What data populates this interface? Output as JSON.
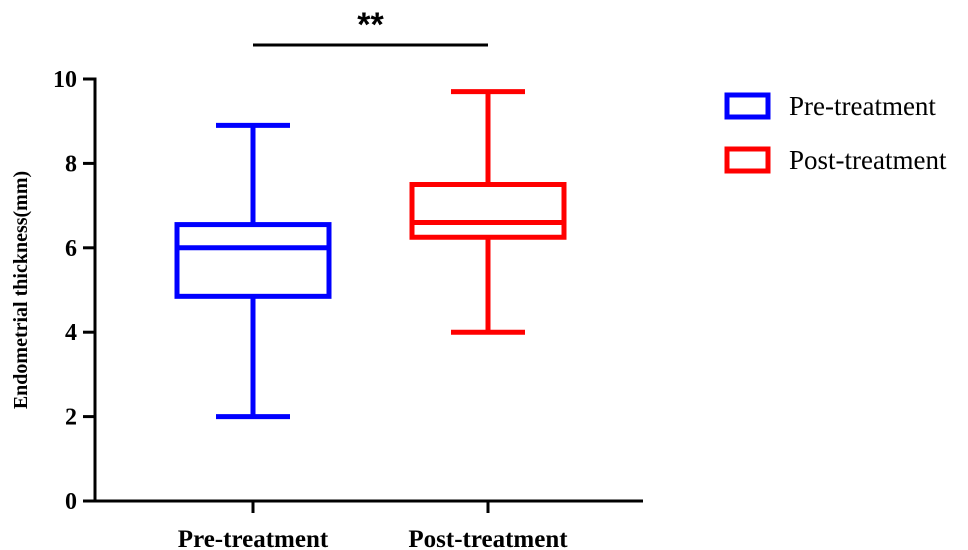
{
  "chart_data": {
    "type": "box",
    "title": "",
    "xlabel": "",
    "ylabel": "Endometrial thickness(mm)",
    "ylim": [
      0,
      10
    ],
    "yticks": [
      0,
      2,
      4,
      6,
      8,
      10
    ],
    "categories": [
      "Pre-treatment",
      "Post-treatment"
    ],
    "series": [
      {
        "name": "Pre-treatment",
        "color": "#0000ff",
        "min": 2.0,
        "q1": 4.85,
        "median": 6.0,
        "q3": 6.55,
        "max": 8.9
      },
      {
        "name": "Post-treatment",
        "color": "#ff0000",
        "min": 4.0,
        "q1": 6.25,
        "median": 6.6,
        "q3": 7.5,
        "max": 9.7
      }
    ],
    "significance": {
      "label": "**",
      "between": [
        "Pre-treatment",
        "Post-treatment"
      ]
    },
    "legend": {
      "position": "top-right",
      "entries": [
        "Pre-treatment",
        "Post-treatment"
      ]
    },
    "grid": false
  }
}
